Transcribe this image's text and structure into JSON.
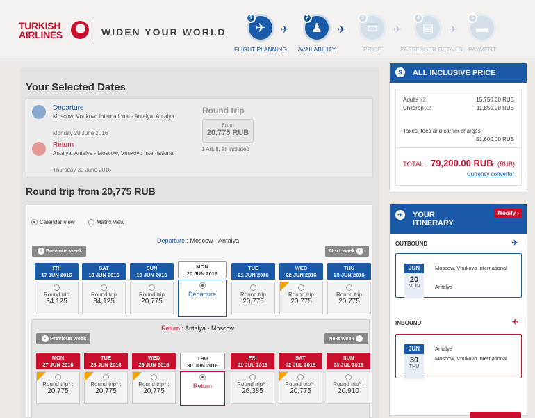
{
  "brand": {
    "name_line1": "TURKISH",
    "name_line2": "AIRLINES",
    "tagline": "WIDEN YOUR WORLD"
  },
  "steps": [
    {
      "num": "1",
      "label": "FLIGHT PLANNING",
      "icon": "globe-plane-icon",
      "active": true
    },
    {
      "num": "2",
      "label": "AVAILABILITY",
      "icon": "seat-icon",
      "active": true
    },
    {
      "num": "3",
      "label": "PRICE",
      "icon": "ticket-icon",
      "active": false
    },
    {
      "num": "4",
      "label": "PASSENGER DETAILS",
      "icon": "id-card-icon",
      "active": false
    },
    {
      "num": "5",
      "label": "PAYMENT",
      "icon": "credit-card-icon",
      "active": false
    }
  ],
  "selected": {
    "title": "Your Selected Dates",
    "departure": {
      "label": "Departure",
      "route": "Moscow, Vnukovo International - Antalya, Antalya",
      "date": "Monday 20 June 2016"
    },
    "return": {
      "label": "Return",
      "route": "Antalya, Antalya - Moscow, Vnukovo International",
      "date": "Thursday 30 June 2016"
    },
    "round_trip_label": "Round trip",
    "from_label": "From",
    "from_price": "20,775 RUB",
    "pax_note": "1 Adult, all included"
  },
  "round_trip_heading": "Round trip from 20,775 RUB",
  "view": {
    "calendar": "Calendar view",
    "matrix": "Matrix view"
  },
  "outbound": {
    "route_key": "Departure :",
    "route": "Moscow - Antalya",
    "prev": "Previous week",
    "next": "Next week",
    "days": [
      {
        "dow": "FRI",
        "date": "17 JUN 2016",
        "label": "Round trip",
        "price": "34,125"
      },
      {
        "dow": "SAT",
        "date": "18 JUN 2016",
        "label": "Round trip",
        "price": "34,125"
      },
      {
        "dow": "SUN",
        "date": "19 JUN 2016",
        "label": "Round trip",
        "price": "20,775"
      },
      {
        "dow": "MON",
        "date": "20 JUN 2016",
        "label": "Departure",
        "price": ""
      },
      {
        "dow": "TUE",
        "date": "21 JUN 2016",
        "label": "Round trip",
        "price": "20,775"
      },
      {
        "dow": "WED",
        "date": "22 JUN 2016",
        "label": "Round trip",
        "price": "20,775"
      },
      {
        "dow": "THU",
        "date": "23 JUN 2016",
        "label": "Round trip",
        "price": "20,775"
      }
    ]
  },
  "inbound": {
    "route_key": "Return :",
    "route": "Antalya - Moscow",
    "prev": "Previous week",
    "next": "Next week",
    "days": [
      {
        "dow": "MON",
        "date": "27 JUN 2016",
        "label": "Round trip* :",
        "price": "20,775"
      },
      {
        "dow": "TUE",
        "date": "28 JUN 2016",
        "label": "Round trip* :",
        "price": "20,775"
      },
      {
        "dow": "WED",
        "date": "29 JUN 2016",
        "label": "Round trip* :",
        "price": "20,775"
      },
      {
        "dow": "THU",
        "date": "30 JUN 2016",
        "label": "Return",
        "price": ""
      },
      {
        "dow": "FRI",
        "date": "01 JUL 2016",
        "label": "Round trip* :",
        "price": "26,385"
      },
      {
        "dow": "SAT",
        "date": "02 JUL 2016",
        "label": "Round trip* :",
        "price": "20,775"
      },
      {
        "dow": "SUN",
        "date": "03 JUL 2016",
        "label": "Round trip* :",
        "price": "20,910"
      }
    ]
  },
  "price_box": {
    "title": "ALL INCLUSIVE PRICE",
    "adults_label": "Adults",
    "adults_count": "x2",
    "adults_price": "15,750.00 RUB",
    "children_label": "Children",
    "children_count": "x2",
    "children_price": "11,850.00 RUB",
    "taxes_label": "Taxes, fees and carrier charges",
    "taxes_price": "51,600.00 RUB",
    "total_label": "TOTAL",
    "total_price": "79,200.00 RUB",
    "total_currency": "(RUB)",
    "converter": "Currency convertor"
  },
  "itinerary": {
    "title_line1": "YOUR",
    "title_line2": "ITINERARY",
    "modify": "Modify",
    "outbound_label": "OUTBOUND",
    "inbound_label": "INBOUND",
    "out": {
      "month": "JUN",
      "day": "20",
      "dow": "MON",
      "from": "Moscow, Vnukovo International",
      "to": "Antalya"
    },
    "in": {
      "month": "JUN",
      "day": "30",
      "dow": "THU",
      "from": "Antalya",
      "to": "Moscow, Vnukovo International"
    }
  },
  "colors": {
    "brand_blue": "#1b5aa6",
    "brand_red": "#c8102e",
    "star_orange": "#f2a400"
  }
}
